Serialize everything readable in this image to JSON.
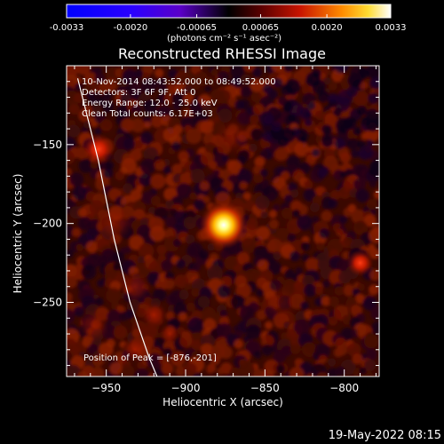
{
  "chart_data": {
    "type": "heatmap",
    "title": "Reconstructed RHESSI Image",
    "xlabel": "Heliocentric X (arcsec)",
    "ylabel": "Heliocentric Y (arcsec)",
    "xlim": [
      -975,
      -778
    ],
    "ylim": [
      -297,
      -100
    ],
    "xticks": [
      -950,
      -900,
      -850,
      -800
    ],
    "yticks": [
      -150,
      -200,
      -250
    ],
    "colorbar": {
      "ticks": [
        "-0.0033",
        "-0.0020",
        "-0.00065",
        "0.00065",
        "0.0020",
        "0.0033"
      ],
      "tick_values": [
        -0.0033,
        -0.002,
        -0.00065,
        0.00065,
        0.002,
        0.0033
      ],
      "range": [
        -0.0033,
        0.0033
      ],
      "label": "(photons cm⁻² s⁻¹ asec⁻²)"
    },
    "annotations": {
      "time_range": "10-Nov-2014 08:43:52.000 to 08:49:52.000",
      "detectors": "Detectors: 3F 6F 9F, Att 0",
      "energy": "Energy Range: 12.0 - 25.0 keV",
      "algorithm": "Clean     Total counts: 6.17E+03",
      "peak": "Position of Peak = [-876,-201]"
    },
    "sources": [
      {
        "x": -876,
        "y": -201,
        "r": 9,
        "intensity": 1.0
      },
      {
        "x": -955,
        "y": -153,
        "r": 6,
        "intensity": 0.55
      },
      {
        "x": -790,
        "y": -225,
        "r": 5,
        "intensity": 0.5
      },
      {
        "x": -932,
        "y": -240,
        "r": 6,
        "intensity": 0.3
      },
      {
        "x": -920,
        "y": -258,
        "r": 5,
        "intensity": 0.4
      },
      {
        "x": -910,
        "y": -270,
        "r": 4,
        "intensity": 0.35
      },
      {
        "x": -932,
        "y": -280,
        "r": 5,
        "intensity": 0.35
      },
      {
        "x": -945,
        "y": -200,
        "r": 7,
        "intensity": 0.25
      },
      {
        "x": -958,
        "y": -265,
        "r": 6,
        "intensity": 0.25
      },
      {
        "x": -870,
        "y": -145,
        "r": 7,
        "intensity": 0.2
      },
      {
        "x": -840,
        "y": -250,
        "r": 7,
        "intensity": 0.15
      }
    ],
    "limb_curve": [
      [
        -968,
        -108
      ],
      [
        -955,
        -160
      ],
      [
        -945,
        -210
      ],
      [
        -935,
        -250
      ],
      [
        -923,
        -285
      ],
      [
        -918,
        -297
      ]
    ]
  },
  "footer": {
    "date": "19-May-2022 08:15"
  },
  "colors": {
    "background": "#000000",
    "foreground": "#ffffff"
  }
}
